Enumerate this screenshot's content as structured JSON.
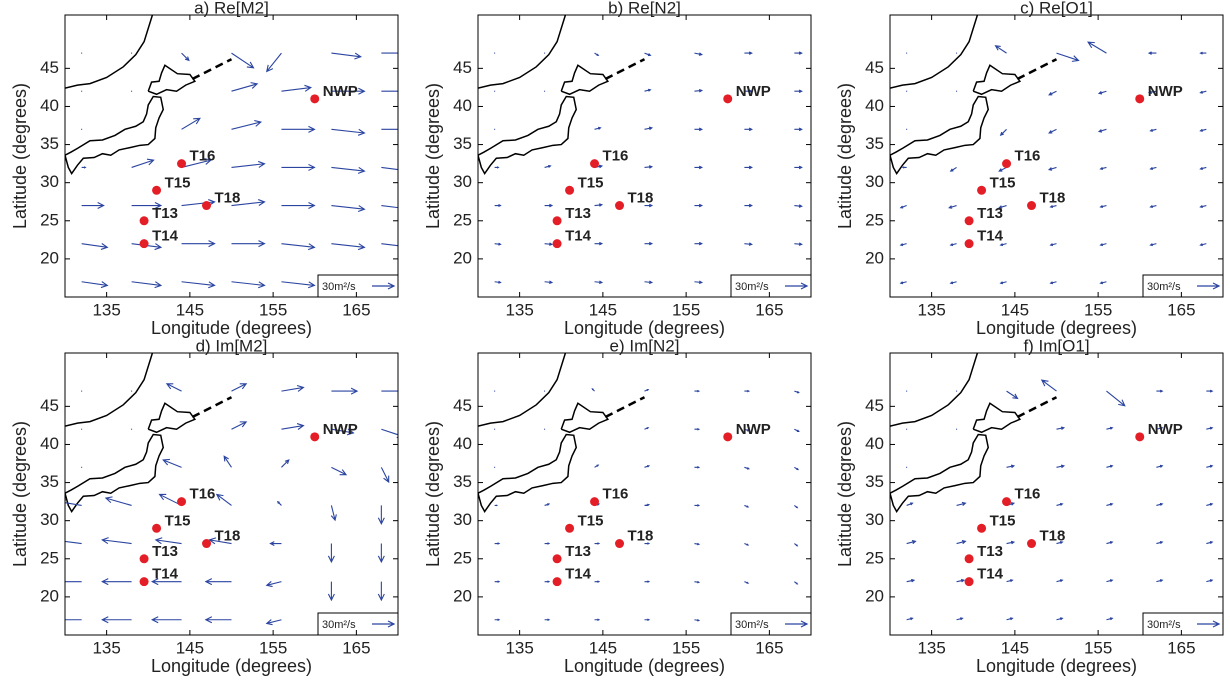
{
  "chart_data": [
    {
      "type": "quiver",
      "title": "a) Re[M2]",
      "xlabel": "Longitude (degrees)",
      "ylabel": "Latitude (degrees)",
      "xlim": [
        130,
        170
      ],
      "ylim": [
        15,
        52
      ],
      "xticks": [
        135,
        145,
        155,
        165
      ],
      "yticks": [
        20,
        25,
        30,
        35,
        40,
        45
      ],
      "lon": [
        132,
        138,
        144,
        150,
        156,
        162,
        168
      ],
      "lat": [
        47,
        42,
        37,
        32,
        27,
        22,
        17
      ],
      "u": [
        [
          0,
          0,
          10,
          30,
          -20,
          40,
          40
        ],
        [
          0,
          0,
          null,
          35,
          40,
          45,
          40
        ],
        [
          0,
          null,
          25,
          40,
          45,
          45,
          40
        ],
        [
          5,
          30,
          40,
          45,
          45,
          45,
          40
        ],
        [
          30,
          40,
          45,
          45,
          45,
          45,
          40
        ],
        [
          35,
          40,
          45,
          45,
          45,
          45,
          40
        ],
        [
          35,
          40,
          45,
          45,
          45,
          40,
          40
        ]
      ],
      "v": [
        [
          0,
          0,
          -10,
          -20,
          -25,
          -5,
          0
        ],
        [
          0,
          0,
          null,
          10,
          5,
          0,
          0
        ],
        [
          0,
          null,
          15,
          10,
          0,
          -5,
          0
        ],
        [
          0,
          10,
          10,
          5,
          0,
          -5,
          -5
        ],
        [
          0,
          0,
          5,
          5,
          0,
          -5,
          -5
        ],
        [
          -5,
          -5,
          0,
          0,
          -5,
          -5,
          -5
        ],
        [
          -5,
          -5,
          -5,
          -5,
          -5,
          -5,
          -5
        ]
      ],
      "stations": [
        {
          "name": "NWP",
          "lon": 160,
          "lat": 41
        },
        {
          "name": "T16",
          "lon": 144,
          "lat": 32.5
        },
        {
          "name": "T15",
          "lon": 141,
          "lat": 29
        },
        {
          "name": "T18",
          "lon": 147,
          "lat": 27
        },
        {
          "name": "T13",
          "lon": 139.5,
          "lat": 25
        },
        {
          "name": "T14",
          "lon": 139.5,
          "lat": 22
        }
      ],
      "scale_value": 30,
      "scale_label": "30m²/s",
      "color": "#2b45a0",
      "station_color": "#e41e26"
    },
    {
      "type": "quiver",
      "title": "b) Re[N2]",
      "xlabel": "Longitude (degrees)",
      "ylabel": "Latitude (degrees)",
      "xlim": [
        130,
        170
      ],
      "ylim": [
        15,
        52
      ],
      "xticks": [
        135,
        145,
        155,
        165
      ],
      "yticks": [
        20,
        25,
        30,
        35,
        40,
        45
      ],
      "lon": [
        132,
        138,
        144,
        150,
        156,
        162,
        168
      ],
      "lat": [
        47,
        42,
        37,
        32,
        27,
        22,
        17
      ],
      "u": [
        [
          0,
          0,
          5,
          8,
          10,
          10,
          10
        ],
        [
          0,
          0,
          null,
          8,
          10,
          10,
          10
        ],
        [
          0,
          null,
          8,
          10,
          10,
          10,
          10
        ],
        [
          5,
          8,
          10,
          10,
          10,
          10,
          10
        ],
        [
          8,
          10,
          10,
          10,
          10,
          10,
          10
        ],
        [
          8,
          10,
          10,
          10,
          10,
          10,
          10
        ],
        [
          8,
          10,
          10,
          10,
          10,
          10,
          10
        ]
      ],
      "v": [
        [
          0,
          0,
          -3,
          -3,
          -2,
          0,
          0
        ],
        [
          0,
          0,
          null,
          2,
          1,
          0,
          0
        ],
        [
          0,
          null,
          2,
          2,
          0,
          0,
          0
        ],
        [
          0,
          2,
          2,
          1,
          0,
          0,
          0
        ],
        [
          0,
          0,
          1,
          0,
          0,
          0,
          -1
        ],
        [
          -1,
          -1,
          0,
          0,
          0,
          -1,
          -1
        ],
        [
          -1,
          -1,
          -1,
          -1,
          -1,
          -1,
          -1
        ]
      ],
      "stations": [
        {
          "name": "NWP",
          "lon": 160,
          "lat": 41
        },
        {
          "name": "T16",
          "lon": 144,
          "lat": 32.5
        },
        {
          "name": "T15",
          "lon": 141,
          "lat": 29
        },
        {
          "name": "T18",
          "lon": 147,
          "lat": 27
        },
        {
          "name": "T13",
          "lon": 139.5,
          "lat": 25
        },
        {
          "name": "T14",
          "lon": 139.5,
          "lat": 22
        }
      ],
      "scale_value": 30,
      "scale_label": "30m²/s",
      "color": "#2b45a0",
      "station_color": "#e41e26"
    },
    {
      "type": "quiver",
      "title": "c) Re[O1]",
      "xlabel": "Longitude (degrees)",
      "ylabel": "Latitude (degrees)",
      "xlim": [
        130,
        170
      ],
      "ylim": [
        15,
        52
      ],
      "xticks": [
        135,
        145,
        155,
        165
      ],
      "yticks": [
        20,
        25,
        30,
        35,
        40,
        45
      ],
      "lon": [
        132,
        138,
        144,
        150,
        156,
        162,
        168
      ],
      "lat": [
        47,
        42,
        37,
        32,
        27,
        22,
        17
      ],
      "u": [
        [
          0,
          0,
          -15,
          30,
          -25,
          -10,
          -8
        ],
        [
          0,
          0,
          null,
          -10,
          -10,
          -10,
          -8
        ],
        [
          0,
          null,
          -8,
          -10,
          -10,
          -8,
          -8
        ],
        [
          -5,
          -8,
          -10,
          -10,
          -8,
          -8,
          -8
        ],
        [
          -8,
          -10,
          -10,
          -8,
          -8,
          -8,
          -8
        ],
        [
          -8,
          -8,
          -8,
          -8,
          -8,
          -8,
          -8
        ],
        [
          -8,
          -8,
          -8,
          -8,
          -8,
          -8,
          -8
        ]
      ],
      "v": [
        [
          0,
          0,
          10,
          -10,
          15,
          0,
          0
        ],
        [
          0,
          0,
          null,
          -5,
          -3,
          -2,
          -2
        ],
        [
          0,
          null,
          -8,
          -5,
          -3,
          -2,
          -2
        ],
        [
          0,
          -5,
          -5,
          -3,
          -2,
          -2,
          -2
        ],
        [
          -3,
          -3,
          -3,
          -2,
          -2,
          -2,
          -2
        ],
        [
          -2,
          -2,
          -2,
          -2,
          -2,
          -2,
          -2
        ],
        [
          -2,
          -2,
          -2,
          -2,
          -2,
          -2,
          -2
        ]
      ],
      "stations": [
        {
          "name": "NWP",
          "lon": 160,
          "lat": 41
        },
        {
          "name": "T16",
          "lon": 144,
          "lat": 32.5
        },
        {
          "name": "T15",
          "lon": 141,
          "lat": 29
        },
        {
          "name": "T18",
          "lon": 147,
          "lat": 27
        },
        {
          "name": "T13",
          "lon": 139.5,
          "lat": 25
        },
        {
          "name": "T14",
          "lon": 139.5,
          "lat": 22
        }
      ],
      "scale_value": 30,
      "scale_label": "30m²/s",
      "color": "#2b45a0",
      "station_color": "#e41e26"
    },
    {
      "type": "quiver",
      "title": "d) Im[M2]",
      "xlabel": "Longitude (degrees)",
      "ylabel": "Latitude (degrees)",
      "xlim": [
        130,
        170
      ],
      "ylim": [
        15,
        52
      ],
      "xticks": [
        135,
        145,
        155,
        165
      ],
      "yticks": [
        20,
        25,
        30,
        35,
        40,
        45
      ],
      "lon": [
        132,
        138,
        144,
        150,
        156,
        162,
        168
      ],
      "lat": [
        47,
        42,
        37,
        32,
        27,
        22,
        17
      ],
      "u": [
        [
          0,
          0,
          -20,
          20,
          30,
          35,
          35
        ],
        [
          0,
          0,
          null,
          20,
          30,
          30,
          30
        ],
        [
          0,
          null,
          -25,
          -10,
          10,
          20,
          10
        ],
        [
          -30,
          -35,
          -30,
          -20,
          -5,
          5,
          0
        ],
        [
          -40,
          -40,
          -35,
          -30,
          -15,
          0,
          0
        ],
        [
          -40,
          -40,
          -40,
          -35,
          -20,
          0,
          0
        ],
        [
          -40,
          -40,
          -40,
          -35,
          -20,
          -5,
          0
        ]
      ],
      "v": [
        [
          0,
          0,
          10,
          10,
          5,
          0,
          0
        ],
        [
          0,
          0,
          null,
          10,
          5,
          -5,
          -10
        ],
        [
          0,
          null,
          10,
          15,
          10,
          -10,
          -20
        ],
        [
          5,
          10,
          15,
          15,
          5,
          -20,
          -25
        ],
        [
          5,
          5,
          5,
          5,
          0,
          -25,
          -25
        ],
        [
          0,
          0,
          0,
          0,
          -5,
          -25,
          -25
        ],
        [
          0,
          0,
          0,
          0,
          -5,
          -25,
          -25
        ]
      ],
      "stations": [
        {
          "name": "NWP",
          "lon": 160,
          "lat": 41
        },
        {
          "name": "T16",
          "lon": 144,
          "lat": 32.5
        },
        {
          "name": "T15",
          "lon": 141,
          "lat": 29
        },
        {
          "name": "T18",
          "lon": 147,
          "lat": 27
        },
        {
          "name": "T13",
          "lon": 139.5,
          "lat": 25
        },
        {
          "name": "T14",
          "lon": 139.5,
          "lat": 22
        }
      ],
      "scale_value": 30,
      "scale_label": "30m²/s",
      "color": "#2b45a0",
      "station_color": "#e41e26"
    },
    {
      "type": "quiver",
      "title": "e) Im[N2]",
      "xlabel": "Longitude (degrees)",
      "ylabel": "Latitude (degrees)",
      "xlim": [
        130,
        170
      ],
      "ylim": [
        15,
        52
      ],
      "xticks": [
        135,
        145,
        155,
        165
      ],
      "yticks": [
        20,
        25,
        30,
        35,
        40,
        45
      ],
      "lon": [
        132,
        138,
        144,
        150,
        156,
        162,
        168
      ],
      "lat": [
        47,
        42,
        37,
        32,
        27,
        22,
        17
      ],
      "u": [
        [
          0,
          0,
          -3,
          5,
          6,
          6,
          6
        ],
        [
          0,
          0,
          null,
          5,
          6,
          6,
          6
        ],
        [
          0,
          null,
          5,
          6,
          6,
          6,
          5
        ],
        [
          3,
          6,
          6,
          6,
          6,
          5,
          4
        ],
        [
          6,
          6,
          6,
          6,
          6,
          5,
          4
        ],
        [
          6,
          6,
          6,
          6,
          6,
          5,
          4
        ],
        [
          6,
          6,
          6,
          6,
          6,
          5,
          4
        ]
      ],
      "v": [
        [
          0,
          0,
          3,
          2,
          0,
          0,
          -2
        ],
        [
          0,
          0,
          null,
          2,
          0,
          -2,
          -3
        ],
        [
          0,
          null,
          3,
          2,
          0,
          -2,
          -3
        ],
        [
          0,
          2,
          2,
          1,
          0,
          -2,
          -3
        ],
        [
          0,
          0,
          0,
          0,
          -1,
          -2,
          -3
        ],
        [
          0,
          0,
          0,
          0,
          -1,
          -2,
          -3
        ],
        [
          0,
          0,
          0,
          0,
          -1,
          -2,
          -3
        ]
      ],
      "stations": [
        {
          "name": "NWP",
          "lon": 160,
          "lat": 41
        },
        {
          "name": "T16",
          "lon": 144,
          "lat": 32.5
        },
        {
          "name": "T15",
          "lon": 141,
          "lat": 29
        },
        {
          "name": "T18",
          "lon": 147,
          "lat": 27
        },
        {
          "name": "T13",
          "lon": 139.5,
          "lat": 25
        },
        {
          "name": "T14",
          "lon": 139.5,
          "lat": 22
        }
      ],
      "scale_value": 30,
      "scale_label": "30m²/s",
      "color": "#2b45a0",
      "station_color": "#e41e26"
    },
    {
      "type": "quiver",
      "title": "f) Im[O1]",
      "xlabel": "Longitude (degrees)",
      "ylabel": "Latitude (degrees)",
      "xlim": [
        130,
        170
      ],
      "ylim": [
        15,
        52
      ],
      "xticks": [
        135,
        145,
        155,
        165
      ],
      "yticks": [
        20,
        25,
        30,
        35,
        40,
        45
      ],
      "lon": [
        132,
        138,
        144,
        150,
        156,
        162,
        168
      ],
      "lat": [
        47,
        42,
        37,
        32,
        27,
        22,
        17
      ],
      "u": [
        [
          0,
          0,
          15,
          -20,
          25,
          8,
          8
        ],
        [
          0,
          0,
          null,
          10,
          8,
          8,
          8
        ],
        [
          0,
          null,
          10,
          10,
          8,
          8,
          8
        ],
        [
          8,
          12,
          10,
          8,
          8,
          8,
          8
        ],
        [
          12,
          12,
          10,
          8,
          8,
          8,
          8
        ],
        [
          10,
          10,
          8,
          8,
          8,
          8,
          8
        ],
        [
          8,
          8,
          8,
          8,
          8,
          8,
          8
        ]
      ],
      "v": [
        [
          0,
          0,
          -10,
          15,
          -20,
          0,
          0
        ],
        [
          0,
          0,
          null,
          2,
          2,
          2,
          2
        ],
        [
          0,
          null,
          2,
          2,
          2,
          2,
          2
        ],
        [
          3,
          3,
          3,
          2,
          2,
          2,
          2
        ],
        [
          3,
          3,
          2,
          2,
          2,
          2,
          2
        ],
        [
          2,
          2,
          2,
          2,
          2,
          2,
          2
        ],
        [
          2,
          2,
          2,
          2,
          2,
          2,
          2
        ]
      ],
      "stations": [
        {
          "name": "NWP",
          "lon": 160,
          "lat": 41
        },
        {
          "name": "T16",
          "lon": 144,
          "lat": 32.5
        },
        {
          "name": "T15",
          "lon": 141,
          "lat": 29
        },
        {
          "name": "T18",
          "lon": 147,
          "lat": 27
        },
        {
          "name": "T13",
          "lon": 139.5,
          "lat": 25
        },
        {
          "name": "T14",
          "lon": 139.5,
          "lat": 22
        }
      ],
      "scale_value": 30,
      "scale_label": "30m²/s",
      "color": "#2b45a0",
      "station_color": "#e41e26"
    }
  ]
}
